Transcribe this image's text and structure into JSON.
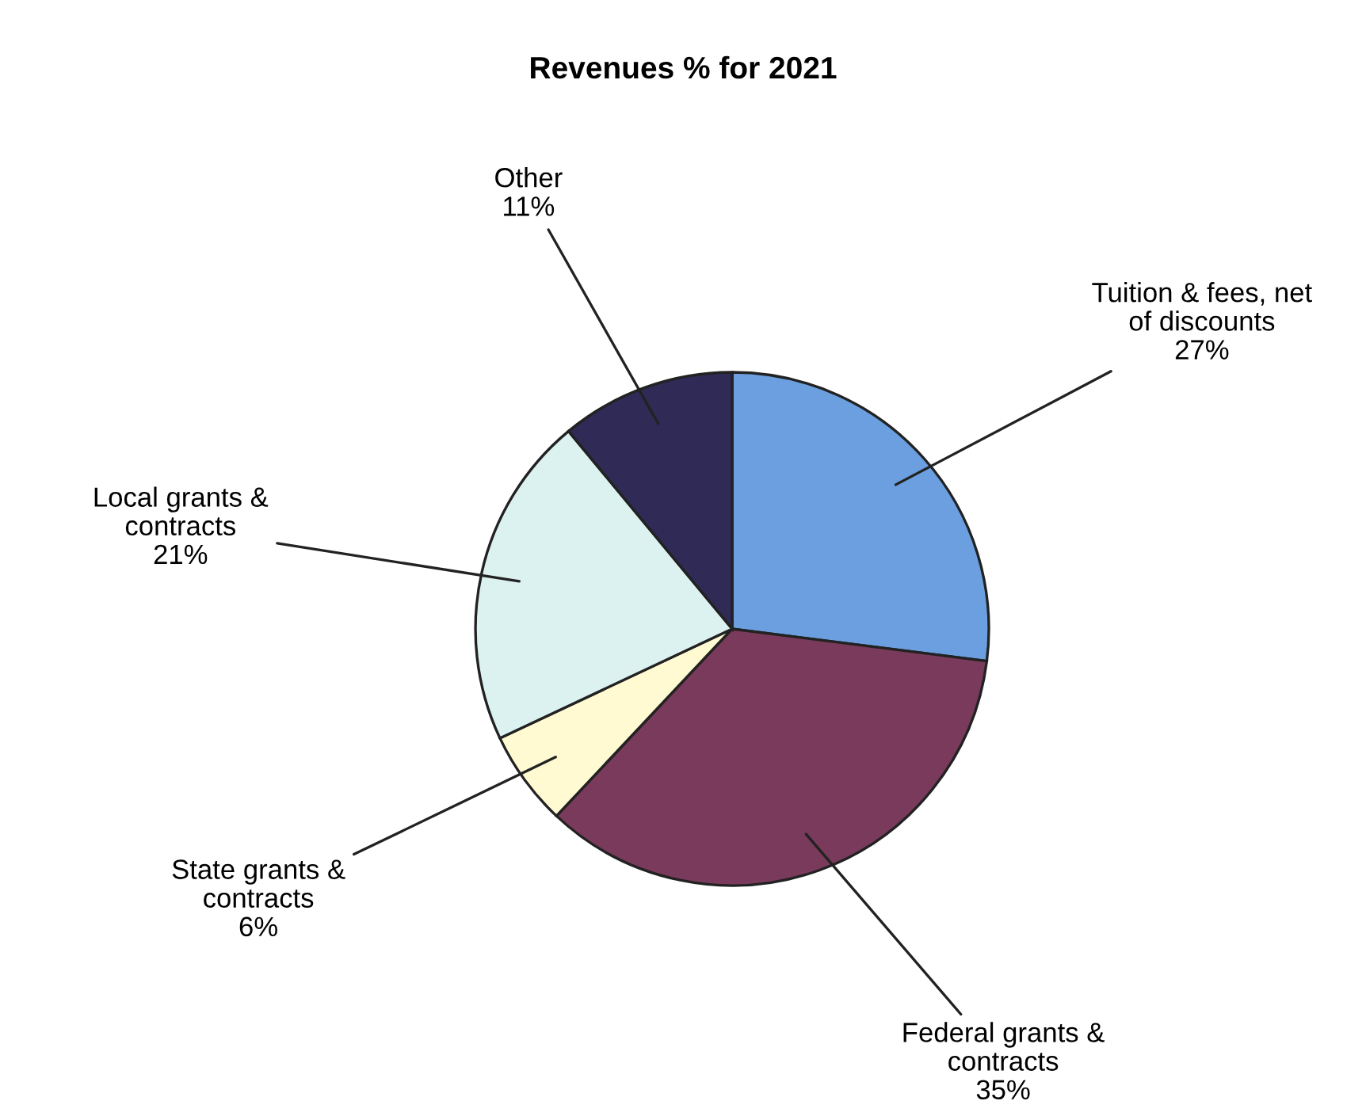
{
  "chart_data": {
    "type": "pie",
    "title": "Revenues % for 2021",
    "categories": [
      "Tuition & fees, net\nof discounts",
      "Federal grants &\ncontracts",
      "State grants &\ncontracts",
      "Local grants &\ncontracts",
      "Other"
    ],
    "values": [
      27,
      35,
      6,
      21,
      11
    ],
    "value_labels": [
      "27%",
      "35%",
      "6%",
      "21%",
      "11%"
    ],
    "colors": [
      "#6b9fe0",
      "#7a3a5c",
      "#fffad2",
      "#dcf2f0",
      "#2f2a56"
    ],
    "legend": false
  }
}
